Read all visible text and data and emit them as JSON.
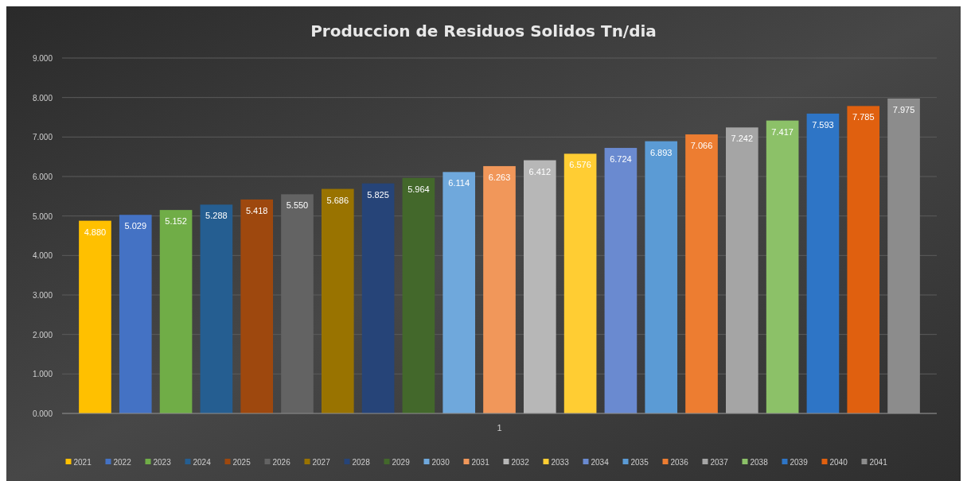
{
  "chart_data": {
    "type": "bar",
    "title": "Produccion de Residuos Solidos Tn/dia",
    "categories": [
      "1"
    ],
    "series": [
      {
        "name": "2021",
        "color": "#ffc000",
        "values": [
          4.88
        ],
        "value_labels": [
          "4.880"
        ]
      },
      {
        "name": "2022",
        "color": "#4472c4",
        "values": [
          5.029
        ],
        "value_labels": [
          "5.029"
        ]
      },
      {
        "name": "2023",
        "color": "#70ad47",
        "values": [
          5.152
        ],
        "value_labels": [
          "5.152"
        ]
      },
      {
        "name": "2024",
        "color": "#255e91",
        "values": [
          5.288
        ],
        "value_labels": [
          "5.288"
        ]
      },
      {
        "name": "2025",
        "color": "#9e480e",
        "values": [
          5.418
        ],
        "value_labels": [
          "5.418"
        ]
      },
      {
        "name": "2026",
        "color": "#636363",
        "values": [
          5.55
        ],
        "value_labels": [
          "5.550"
        ]
      },
      {
        "name": "2027",
        "color": "#997300",
        "values": [
          5.686
        ],
        "value_labels": [
          "5.686"
        ]
      },
      {
        "name": "2028",
        "color": "#264478",
        "values": [
          5.825
        ],
        "value_labels": [
          "5.825"
        ]
      },
      {
        "name": "2029",
        "color": "#43682b",
        "values": [
          5.964
        ],
        "value_labels": [
          "5.964"
        ]
      },
      {
        "name": "2030",
        "color": "#6fa8dc",
        "values": [
          6.114
        ],
        "value_labels": [
          "6.114"
        ]
      },
      {
        "name": "2031",
        "color": "#f1975a",
        "values": [
          6.263
        ],
        "value_labels": [
          "6.263"
        ]
      },
      {
        "name": "2032",
        "color": "#b7b7b7",
        "values": [
          6.412
        ],
        "value_labels": [
          "6.412"
        ]
      },
      {
        "name": "2033",
        "color": "#ffcd33",
        "values": [
          6.576
        ],
        "value_labels": [
          "6.576"
        ]
      },
      {
        "name": "2034",
        "color": "#6a8ad0",
        "values": [
          6.724
        ],
        "value_labels": [
          "6.724"
        ]
      },
      {
        "name": "2035",
        "color": "#5b9bd5",
        "values": [
          6.893
        ],
        "value_labels": [
          "6.893"
        ]
      },
      {
        "name": "2036",
        "color": "#ed7d31",
        "values": [
          7.066
        ],
        "value_labels": [
          "7.066"
        ]
      },
      {
        "name": "2037",
        "color": "#a5a5a5",
        "values": [
          7.242
        ],
        "value_labels": [
          "7.242"
        ]
      },
      {
        "name": "2038",
        "color": "#8cc168",
        "values": [
          7.417
        ],
        "value_labels": [
          "7.417"
        ]
      },
      {
        "name": "2039",
        "color": "#2e75c6",
        "values": [
          7.593
        ],
        "value_labels": [
          "7.593"
        ]
      },
      {
        "name": "2040",
        "color": "#e0600f",
        "values": [
          7.785
        ],
        "value_labels": [
          "7.785"
        ]
      },
      {
        "name": "2041",
        "color": "#8c8c8c",
        "values": [
          7.975
        ],
        "value_labels": [
          "7.975"
        ]
      }
    ],
    "ylim": [
      0,
      9
    ],
    "yticks": [
      {
        "value": 0,
        "label": "0.000"
      },
      {
        "value": 1,
        "label": "1.000"
      },
      {
        "value": 2,
        "label": "2.000"
      },
      {
        "value": 3,
        "label": "3.000"
      },
      {
        "value": 4,
        "label": "4.000"
      },
      {
        "value": 5,
        "label": "5.000"
      },
      {
        "value": 6,
        "label": "6.000"
      },
      {
        "value": 7,
        "label": "7.000"
      },
      {
        "value": 8,
        "label": "8.000"
      },
      {
        "value": 9,
        "label": "9.000"
      }
    ],
    "grid": "y",
    "legend": "bottom"
  }
}
